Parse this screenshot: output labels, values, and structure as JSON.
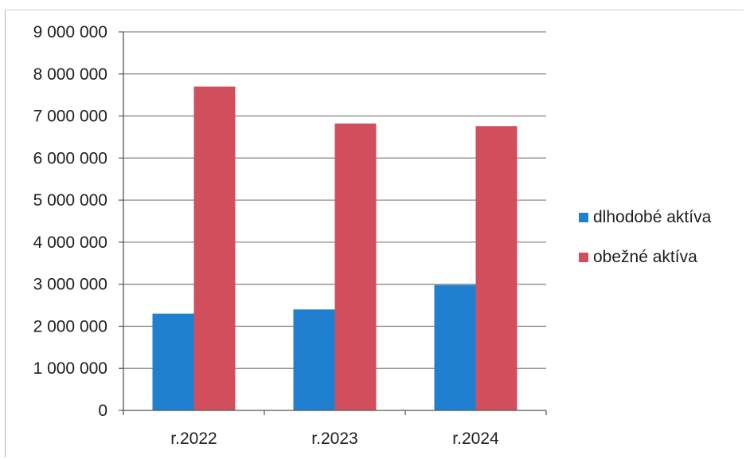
{
  "chart_data": {
    "type": "bar",
    "title": "",
    "xlabel": "",
    "ylabel": "",
    "categories": [
      "r.2022",
      "r.2023",
      "r.2024"
    ],
    "series": [
      {
        "name": "dlhodobé aktíva",
        "values": [
          2300000,
          2400000,
          2980000
        ],
        "color": "#1f7fd0"
      },
      {
        "name": "obežné aktíva",
        "values": [
          7700000,
          6820000,
          6760000
        ],
        "color": "#d14f5c"
      }
    ],
    "ylim": [
      0,
      9000000
    ],
    "yticks": [
      0,
      1000000,
      2000000,
      3000000,
      4000000,
      5000000,
      6000000,
      7000000,
      8000000,
      9000000
    ],
    "ytick_labels": [
      "0",
      "1 000 000",
      "2 000 000",
      "3 000 000",
      "4 000 000",
      "5 000 000",
      "6 000 000",
      "7 000 000",
      "8 000 000",
      "9 000 000"
    ],
    "grid": true,
    "legend_position": "right"
  }
}
